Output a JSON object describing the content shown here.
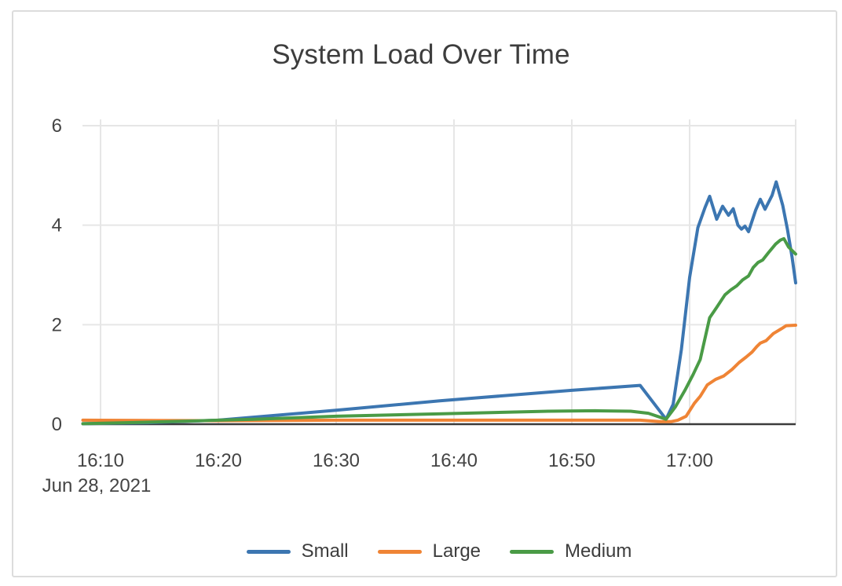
{
  "chart_data": {
    "type": "line",
    "title": "System Load Over Time",
    "xlabel": "",
    "ylabel": "",
    "grid": true,
    "legend_position": "bottom-center",
    "x_axis": {
      "date_label": "Jun 28, 2021",
      "unit": "minutes after 16:00",
      "range": [
        8.47,
        69
      ],
      "right_edge_t": 69,
      "ticks": [
        {
          "t": 10,
          "label": "16:10"
        },
        {
          "t": 20,
          "label": "16:20"
        },
        {
          "t": 30,
          "label": "16:30"
        },
        {
          "t": 40,
          "label": "16:40"
        },
        {
          "t": 50,
          "label": "16:50"
        },
        {
          "t": 60,
          "label": "17:00"
        }
      ]
    },
    "y_axis": {
      "range": [
        0,
        6.3
      ],
      "ticks": [
        {
          "v": 0,
          "label": "0"
        },
        {
          "v": 2,
          "label": "2"
        },
        {
          "v": 4,
          "label": "4"
        },
        {
          "v": 6,
          "label": "6"
        }
      ]
    },
    "colors": {
      "grid": "#e6e6e6",
      "axis": "#3b3b3b",
      "tick_text": "#444444",
      "title_text": "#3d3d3d",
      "frame_border": "#dcdcdc"
    },
    "series": [
      {
        "name": "Small",
        "color": "#3c76b1",
        "points": [
          [
            8.5,
            0.01
          ],
          [
            14,
            0.03
          ],
          [
            20,
            0.08
          ],
          [
            30,
            0.28
          ],
          [
            38.8,
            0.47
          ],
          [
            50,
            0.68
          ],
          [
            55.8,
            0.78
          ],
          [
            58,
            0.1
          ],
          [
            58.6,
            0.4
          ],
          [
            59.3,
            1.5
          ],
          [
            60,
            2.95
          ],
          [
            60.7,
            3.95
          ],
          [
            61.3,
            4.35
          ],
          [
            61.7,
            4.58
          ],
          [
            62.3,
            4.12
          ],
          [
            62.8,
            4.38
          ],
          [
            63.3,
            4.2
          ],
          [
            63.7,
            4.33
          ],
          [
            64.1,
            4.0
          ],
          [
            64.4,
            3.92
          ],
          [
            64.7,
            3.98
          ],
          [
            65,
            3.87
          ],
          [
            65.6,
            4.3
          ],
          [
            66,
            4.52
          ],
          [
            66.4,
            4.32
          ],
          [
            67,
            4.6
          ],
          [
            67.35,
            4.87
          ],
          [
            67.9,
            4.4
          ],
          [
            68.3,
            3.92
          ],
          [
            68.7,
            3.35
          ],
          [
            69,
            2.84
          ]
        ]
      },
      {
        "name": "Large",
        "color": "#ef8435",
        "points": [
          [
            8.5,
            0.08
          ],
          [
            20,
            0.07
          ],
          [
            30,
            0.08
          ],
          [
            40,
            0.08
          ],
          [
            50,
            0.08
          ],
          [
            55.8,
            0.08
          ],
          [
            57.5,
            0.05
          ],
          [
            58.4,
            0.05
          ],
          [
            59,
            0.08
          ],
          [
            59.7,
            0.16
          ],
          [
            60.4,
            0.42
          ],
          [
            60.9,
            0.56
          ],
          [
            61.5,
            0.79
          ],
          [
            62.2,
            0.9
          ],
          [
            62.9,
            0.97
          ],
          [
            63.6,
            1.1
          ],
          [
            64.2,
            1.24
          ],
          [
            64.8,
            1.35
          ],
          [
            65.3,
            1.45
          ],
          [
            65.7,
            1.56
          ],
          [
            66,
            1.63
          ],
          [
            66.5,
            1.68
          ],
          [
            67.1,
            1.82
          ],
          [
            67.8,
            1.92
          ],
          [
            68.2,
            1.98
          ],
          [
            69,
            1.99
          ]
        ]
      },
      {
        "name": "Medium",
        "color": "#4a9b46",
        "points": [
          [
            8.5,
            0.01
          ],
          [
            14,
            0.04
          ],
          [
            20,
            0.08
          ],
          [
            23,
            0.1
          ],
          [
            30,
            0.16
          ],
          [
            39,
            0.21
          ],
          [
            48,
            0.26
          ],
          [
            52,
            0.27
          ],
          [
            55,
            0.26
          ],
          [
            56.5,
            0.22
          ],
          [
            58,
            0.1
          ],
          [
            58.8,
            0.35
          ],
          [
            59.6,
            0.68
          ],
          [
            60.3,
            1.0
          ],
          [
            60.9,
            1.3
          ],
          [
            61.7,
            2.14
          ],
          [
            62.3,
            2.35
          ],
          [
            63,
            2.6
          ],
          [
            63.5,
            2.7
          ],
          [
            64,
            2.78
          ],
          [
            64.5,
            2.9
          ],
          [
            65,
            2.98
          ],
          [
            65.4,
            3.15
          ],
          [
            65.8,
            3.25
          ],
          [
            66.2,
            3.3
          ],
          [
            66.7,
            3.45
          ],
          [
            67.3,
            3.62
          ],
          [
            67.7,
            3.7
          ],
          [
            68,
            3.73
          ],
          [
            68.4,
            3.56
          ],
          [
            69,
            3.42
          ]
        ]
      }
    ]
  }
}
